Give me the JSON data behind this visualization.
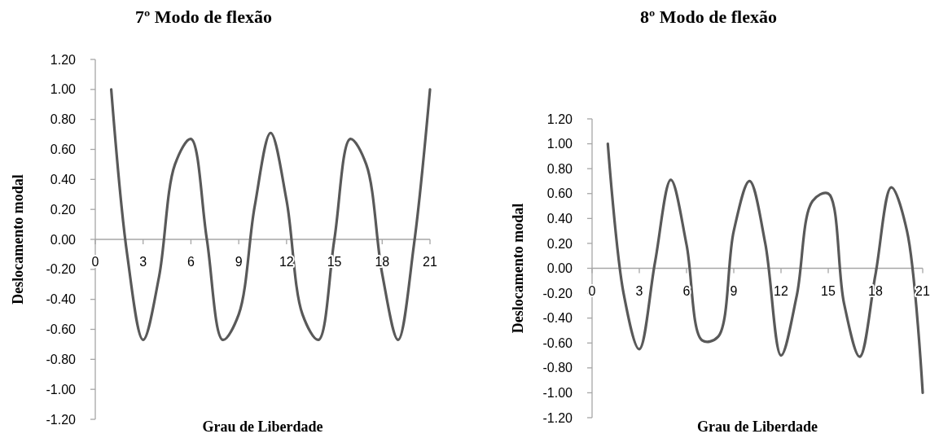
{
  "chart_data": [
    {
      "type": "line",
      "title": "7º Modo de flexão",
      "xlabel": "Grau de Liberdade",
      "ylabel": "Deslocamento modal",
      "xlim": [
        0,
        21
      ],
      "xticks": [
        0,
        3,
        6,
        9,
        12,
        15,
        18,
        21
      ],
      "ylim": [
        -1.2,
        1.2
      ],
      "yticks": [
        {
          "value": -1.2,
          "label": "-1.20"
        },
        {
          "value": -1.0,
          "label": "-1.00"
        },
        {
          "value": -0.8,
          "label": "-0.80"
        },
        {
          "value": -0.6,
          "label": "-0.60"
        },
        {
          "value": -0.4,
          "label": "-0.40"
        },
        {
          "value": -0.2,
          "label": "-0.20"
        },
        {
          "value": 0,
          "label": "0.00"
        },
        {
          "value": 0.2,
          "label": "0.20"
        },
        {
          "value": 0.4,
          "label": "0.40"
        },
        {
          "value": 0.6,
          "label": "0.60"
        },
        {
          "value": 0.8,
          "label": "0.80"
        },
        {
          "value": 1.0,
          "label": "1.00"
        },
        {
          "value": 1.2,
          "label": "1.20"
        }
      ],
      "marker": "none",
      "line_style": "solid",
      "x": [
        1,
        2,
        3,
        4,
        5,
        6,
        7,
        8,
        9,
        10,
        11,
        12,
        13,
        14,
        15,
        16,
        17,
        18,
        19,
        20,
        21
      ],
      "series": [
        {
          "color": "#595959",
          "values": [
            1.0,
            -0.1,
            -0.67,
            -0.25,
            0.5,
            0.67,
            0.0,
            -0.67,
            -0.5,
            0.22,
            0.71,
            0.26,
            -0.5,
            -0.67,
            0.0,
            0.67,
            0.5,
            -0.23,
            -0.67,
            -0.03,
            1.0
          ]
        }
      ]
    },
    {
      "type": "line",
      "title": "8º Modo de flexão",
      "xlabel": "Grau de Liberdade",
      "ylabel": "Deslocamento modal",
      "xlim": [
        0,
        21
      ],
      "xticks": [
        0,
        3,
        6,
        9,
        12,
        15,
        18,
        21
      ],
      "ylim": [
        -1.2,
        1.2
      ],
      "yticks": [
        {
          "value": -1.2,
          "label": "-1.20"
        },
        {
          "value": -1.0,
          "label": "-1.00"
        },
        {
          "value": -0.8,
          "label": "-0.80"
        },
        {
          "value": -0.6,
          "label": "-0.60"
        },
        {
          "value": -0.4,
          "label": "-0.40"
        },
        {
          "value": -0.2,
          "label": "-0.20"
        },
        {
          "value": 0,
          "label": "0.00"
        },
        {
          "value": 0.2,
          "label": "0.20"
        },
        {
          "value": 0.4,
          "label": "0.40"
        },
        {
          "value": 0.6,
          "label": "0.60"
        },
        {
          "value": 0.8,
          "label": "0.80"
        },
        {
          "value": 1.0,
          "label": "1.00"
        },
        {
          "value": 1.2,
          "label": "1.20"
        }
      ],
      "marker": "none",
      "line_style": "solid",
      "x": [
        1,
        2,
        3,
        4,
        5,
        6,
        7,
        8,
        9,
        10,
        11,
        12,
        13,
        14,
        15,
        16,
        17,
        18,
        19,
        20,
        21
      ],
      "series": [
        {
          "color": "#595959",
          "values": [
            1.0,
            -0.2,
            -0.65,
            0.05,
            0.71,
            0.19,
            -0.58,
            -0.55,
            0.3,
            0.7,
            0.2,
            -0.7,
            -0.22,
            0.54,
            0.6,
            -0.28,
            -0.71,
            -0.05,
            0.65,
            0.3,
            -1.0
          ]
        }
      ]
    }
  ]
}
